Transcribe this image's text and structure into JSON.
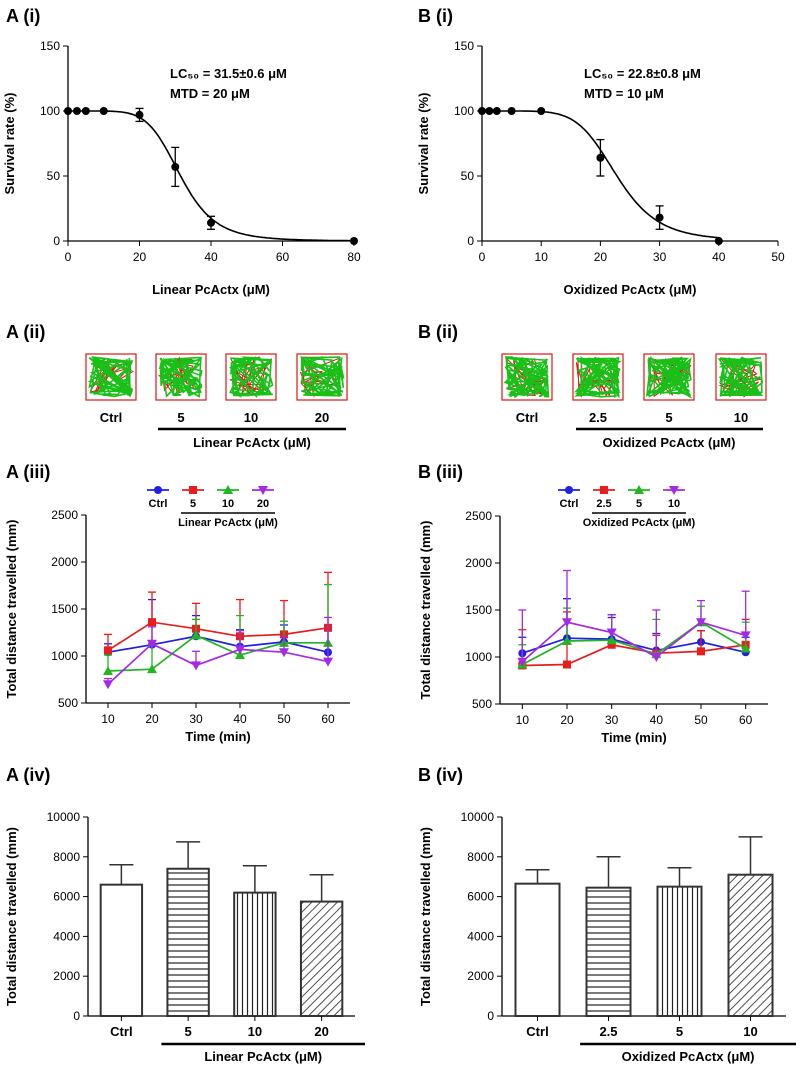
{
  "panels": {
    "a1": "A (i)",
    "b1": "B (i)",
    "a2": "A (ii)",
    "b2": "B (ii)",
    "a3": "A (iii)",
    "b3": "B (iii)",
    "a4": "A (iv)",
    "b4": "B (iv)"
  },
  "colors": {
    "ctrl": "#1f1fe6",
    "low": "#e61e1e",
    "mid": "#22b522",
    "high": "#a52ae6",
    "track_red": "#e01515",
    "track_green": "#18c018"
  },
  "chart_data": [
    {
      "id": "A1",
      "type": "scatter",
      "fit": "sigmoid",
      "xlabel": "Linear PcActx (μM)",
      "ylabel": "Survival rate (%)",
      "xlim": [
        0,
        80
      ],
      "ylim": [
        0,
        150
      ],
      "xticks": [
        "0",
        "20",
        "40",
        "60",
        "80"
      ],
      "yticks": [
        "0",
        "50",
        "100",
        "150"
      ],
      "annotation_lc": "LC₅₀ = 31.5±0.6 μM",
      "annotation_mtd": "MTD = 20 μM",
      "lc50": 31.5,
      "points": [
        {
          "x": 0,
          "y": 100,
          "err": 0
        },
        {
          "x": 2.5,
          "y": 100,
          "err": 0
        },
        {
          "x": 5,
          "y": 100,
          "err": 0
        },
        {
          "x": 10,
          "y": 100,
          "err": 0
        },
        {
          "x": 20,
          "y": 97,
          "err": 5
        },
        {
          "x": 30,
          "y": 57,
          "err": 15
        },
        {
          "x": 40,
          "y": 14,
          "err": 5
        },
        {
          "x": 80,
          "y": 0,
          "err": 0
        }
      ]
    },
    {
      "id": "B1",
      "type": "scatter",
      "fit": "sigmoid",
      "xlabel": "Oxidized PcActx (μM)",
      "ylabel": "Survival rate (%)",
      "xlim": [
        0,
        50
      ],
      "ylim": [
        0,
        150
      ],
      "xticks": [
        "0",
        "10",
        "20",
        "30",
        "40",
        "50"
      ],
      "yticks": [
        "0",
        "50",
        "100",
        "150"
      ],
      "annotation_lc": "LC₅₀ = 22.8±0.8 μM",
      "annotation_mtd": "MTD = 10 μM",
      "lc50": 22.8,
      "points": [
        {
          "x": 0,
          "y": 100,
          "err": 0
        },
        {
          "x": 1.25,
          "y": 100,
          "err": 0
        },
        {
          "x": 2.5,
          "y": 100,
          "err": 0
        },
        {
          "x": 5,
          "y": 100,
          "err": 0
        },
        {
          "x": 10,
          "y": 100,
          "err": 0
        },
        {
          "x": 20,
          "y": 64,
          "err": 14
        },
        {
          "x": 30,
          "y": 18,
          "err": 9
        },
        {
          "x": 40,
          "y": 0,
          "err": 0
        }
      ]
    },
    {
      "id": "A3",
      "type": "line",
      "xlabel": "Time (min)",
      "ylabel": "Total distance travelled (mm)",
      "x": [
        10,
        20,
        30,
        40,
        50,
        60
      ],
      "xlim": [
        5,
        65
      ],
      "ylim": [
        500,
        2500
      ],
      "xticks": [
        "10",
        "20",
        "30",
        "40",
        "50",
        "60"
      ],
      "yticks": [
        "500",
        "1000",
        "1500",
        "2000",
        "2500"
      ],
      "legend_group": "Linear PcActx (μM)",
      "series": [
        {
          "name": "Ctrl",
          "key": "ctrl",
          "marker": "circle",
          "values": [
            1040,
            1120,
            1210,
            1100,
            1150,
            1040
          ],
          "err": [
            90,
            480,
            220,
            180,
            180,
            280
          ]
        },
        {
          "name": "5",
          "key": "low",
          "marker": "square",
          "values": [
            1060,
            1360,
            1290,
            1210,
            1230,
            1300
          ],
          "err": [
            170,
            320,
            270,
            390,
            360,
            590
          ]
        },
        {
          "name": "10",
          "key": "mid",
          "marker": "tri-up",
          "values": [
            840,
            860,
            1220,
            1010,
            1140,
            1140
          ],
          "err": [
            170,
            260,
            170,
            420,
            230,
            620
          ]
        },
        {
          "name": "20",
          "key": "high",
          "marker": "tri-down",
          "values": [
            700,
            1130,
            900,
            1070,
            1040,
            940
          ],
          "err": [
            60,
            180,
            150,
            200,
            170,
            470
          ]
        }
      ]
    },
    {
      "id": "B3",
      "type": "line",
      "xlabel": "Time (min)",
      "ylabel": "Total distance travelled (mm)",
      "x": [
        10,
        20,
        30,
        40,
        50,
        60
      ],
      "xlim": [
        5,
        65
      ],
      "ylim": [
        500,
        2500
      ],
      "xticks": [
        "10",
        "20",
        "30",
        "40",
        "50",
        "60"
      ],
      "yticks": [
        "500",
        "1000",
        "1500",
        "2000",
        "2500"
      ],
      "legend_group": "Oxidized PcActx (μM)",
      "series": [
        {
          "name": "Ctrl",
          "key": "ctrl",
          "marker": "circle",
          "values": [
            1040,
            1200,
            1190,
            1070,
            1160,
            1050
          ],
          "err": [
            170,
            420,
            230,
            180,
            120,
            160
          ]
        },
        {
          "name": "2.5",
          "key": "low",
          "marker": "square",
          "values": [
            910,
            920,
            1130,
            1040,
            1060,
            1130
          ],
          "err": [
            380,
            560,
            320,
            190,
            220,
            270
          ]
        },
        {
          "name": "5",
          "key": "mid",
          "marker": "tri-up",
          "values": [
            920,
            1170,
            1180,
            1030,
            1370,
            1090
          ],
          "err": [
            210,
            350,
            270,
            370,
            170,
            280
          ]
        },
        {
          "name": "10",
          "key": "high",
          "marker": "tri-down",
          "values": [
            950,
            1370,
            1260,
            1000,
            1370,
            1230
          ],
          "err": [
            550,
            550,
            190,
            500,
            230,
            470
          ]
        }
      ]
    },
    {
      "id": "A4",
      "type": "bar",
      "ylabel": "Total distance travelled (mm)",
      "ylim": [
        0,
        10000
      ],
      "yticks": [
        "0",
        "2000",
        "4000",
        "6000",
        "8000",
        "10000"
      ],
      "categories": [
        "Ctrl",
        "5",
        "10",
        "20"
      ],
      "group_label": "Linear PcActx (μM)",
      "values": [
        6600,
        7400,
        6200,
        5750
      ],
      "err": [
        1000,
        1350,
        1350,
        1350
      ],
      "patterns": [
        "none",
        "horizontal",
        "vertical",
        "diagonal"
      ]
    },
    {
      "id": "B4",
      "type": "bar",
      "ylabel": "Total distance travelled (mm)",
      "ylim": [
        0,
        10000
      ],
      "yticks": [
        "0",
        "2000",
        "4000",
        "6000",
        "8000",
        "10000"
      ],
      "categories": [
        "Ctrl",
        "2.5",
        "5",
        "10"
      ],
      "group_label": "Oxidized PcActx (μM)",
      "values": [
        6650,
        6450,
        6500,
        7100
      ],
      "err": [
        700,
        1550,
        950,
        1900
      ],
      "patterns": [
        "none",
        "horizontal",
        "vertical",
        "diagonal"
      ]
    }
  ],
  "tracks": {
    "a": {
      "labels": [
        "Ctrl",
        "5",
        "10",
        "20"
      ],
      "group_label": "Linear PcActx (μM)"
    },
    "b": {
      "labels": [
        "Ctrl",
        "2.5",
        "5",
        "10"
      ],
      "group_label": "Oxidized PcActx (μM)"
    }
  }
}
